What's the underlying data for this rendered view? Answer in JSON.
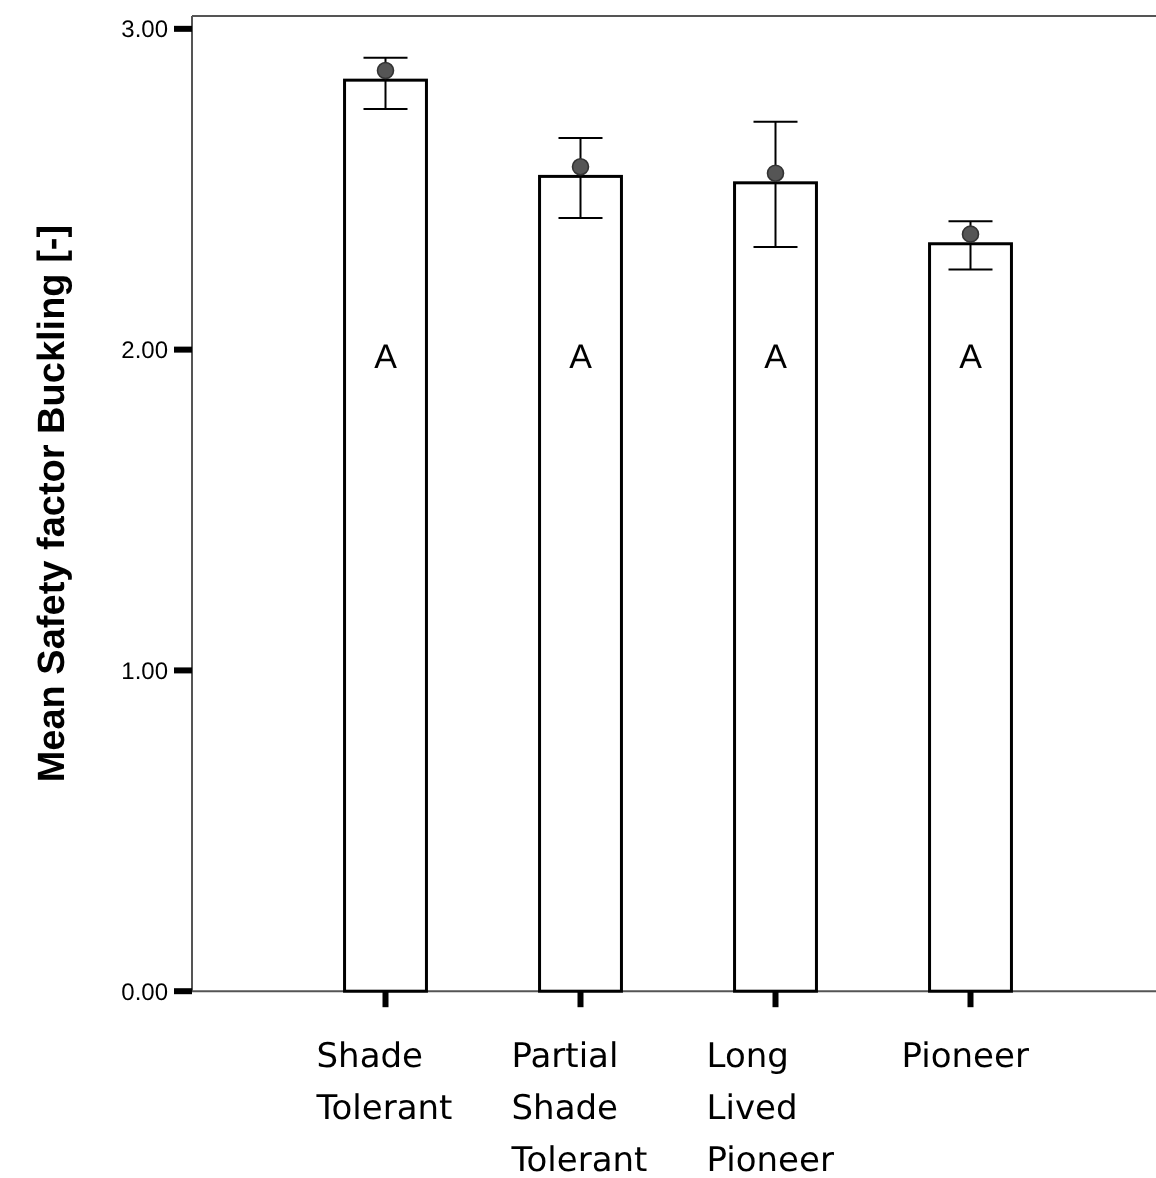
{
  "chart_data": {
    "type": "bar",
    "ylabel": "Mean Safety factor Buckling [-]",
    "categories": [
      "Shade Tolerant",
      "Partial Shade Tolerant",
      "Long Lived Pioneer",
      "Pioneer"
    ],
    "series": [
      {
        "color": "#ffffff",
        "values": [
          2.84,
          2.54,
          2.52,
          2.33
        ],
        "errors": [
          [
            2.75,
            2.91
          ],
          [
            2.41,
            2.66
          ],
          [
            2.32,
            2.71
          ],
          [
            2.25,
            2.4
          ]
        ]
      },
      {
        "type": "scatter",
        "color": "#555555",
        "x": [
          "Shade Tolerant",
          "Partial Shade Tolerant",
          "Long Lived Pioneer",
          "Pioneer"
        ],
        "values": [
          2.87,
          2.57,
          2.55,
          2.36
        ],
        "marker": "circle"
      }
    ],
    "annotations": [
      "A",
      "A",
      "A",
      "A"
    ],
    "ylim": [
      0,
      3.04
    ],
    "yticks": [
      {
        "value": 0,
        "label": "0.00"
      },
      {
        "value": 1,
        "label": "1.00"
      },
      {
        "value": 2,
        "label": "2.00"
      },
      {
        "value": 3,
        "label": "3.00"
      }
    ],
    "grid": false
  }
}
